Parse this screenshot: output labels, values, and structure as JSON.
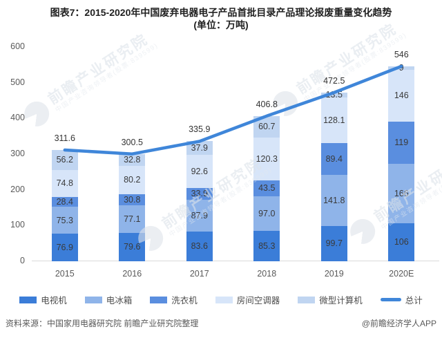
{
  "chart_data": {
    "type": "bar",
    "stacked": true,
    "title": "图表7：2015-2020年中国废弃电器电子产品首批目录产品理论报废重量变化趋势",
    "unit_line": "(单位：万吨)",
    "categories": [
      "2015",
      "2016",
      "2017",
      "2018",
      "2019",
      "2020E"
    ],
    "series": [
      {
        "name": "电视机",
        "color": "#3b7dd8",
        "values": [
          76.9,
          79.6,
          83.6,
          85.3,
          99.7,
          106
        ],
        "labels": [
          "76.9",
          "79.6",
          "83.6",
          "85.3",
          "99.7",
          "106"
        ]
      },
      {
        "name": "电冰箱",
        "color": "#8fb4e9",
        "values": [
          75.3,
          77.1,
          87.9,
          97.0,
          141.8,
          166
        ],
        "labels": [
          "75.3",
          "77.1",
          "87.9",
          "97.0",
          "141.8",
          "166"
        ]
      },
      {
        "name": "洗衣机",
        "color": "#5a8edf",
        "values": [
          28.4,
          30.8,
          33.9,
          43.5,
          89.4,
          119
        ],
        "labels": [
          "28.4",
          "30.8",
          "33.9",
          "43.5",
          "89.4",
          "119"
        ]
      },
      {
        "name": "房间空调器",
        "color": "#d7e5f9",
        "values": [
          74.8,
          80.2,
          92.6,
          120.3,
          128.1,
          146
        ],
        "labels": [
          "74.8",
          "80.2",
          "92.6",
          "120.3",
          "128.1",
          "146"
        ]
      },
      {
        "name": "微型计算机",
        "color": "#c0d5f1",
        "values": [
          56.2,
          32.8,
          37.9,
          60.7,
          13.5,
          9
        ],
        "labels": [
          "56.2",
          "32.8",
          "37.9",
          "60.7",
          "13.5",
          "9"
        ]
      }
    ],
    "line_series": {
      "name": "总计",
      "color": "#3f86d9",
      "values": [
        311.6,
        300.5,
        335.9,
        406.8,
        472.5,
        546
      ],
      "labels": [
        "311.6",
        "300.5",
        "335.9",
        "406.8",
        "472.5",
        "546"
      ]
    },
    "ylim": [
      0,
      600
    ],
    "yticks": [
      0,
      100,
      200,
      300,
      400,
      500,
      600
    ],
    "xlabel": "",
    "ylabel": "",
    "grid": false,
    "legend_position": "bottom"
  },
  "footer": {
    "source": "资料来源：中国家用电器研究院 前瞻产业研究院整理",
    "credit": "@前瞻经济学人APP"
  },
  "watermark": {
    "brand": "前瞻产业研究院",
    "tagline": "中国产业咨询领导者(股票:839599)"
  }
}
